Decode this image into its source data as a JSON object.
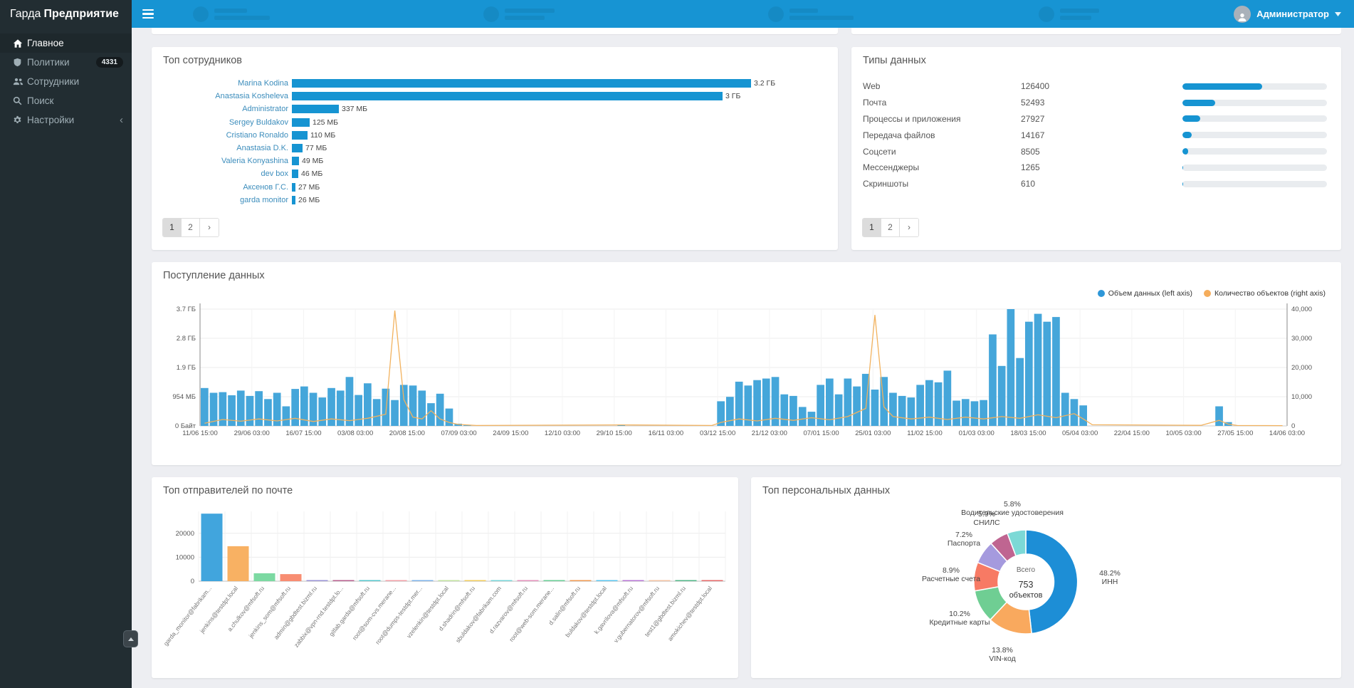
{
  "app": {
    "brand_light": "Гарда",
    "brand_bold": "Предприятие"
  },
  "header": {
    "user": "Администратор"
  },
  "sidebar": {
    "items": [
      {
        "label": "Главное",
        "icon": "home",
        "active": true
      },
      {
        "label": "Политики",
        "icon": "shield",
        "badge": "4331"
      },
      {
        "label": "Сотрудники",
        "icon": "users"
      },
      {
        "label": "Поиск",
        "icon": "search"
      },
      {
        "label": "Настройки",
        "icon": "gear",
        "chevron": "‹"
      }
    ]
  },
  "panels": {
    "top_employees": {
      "title": "Топ сотрудников",
      "pagination": [
        "1",
        "2",
        "›"
      ],
      "active_page": "1"
    },
    "data_types": {
      "title": "Типы данных",
      "pagination": [
        "1",
        "2",
        "›"
      ],
      "active_page": "1"
    },
    "data_flow": {
      "title": "Поступление данных",
      "legend": [
        {
          "label": "Объем данных (left axis)",
          "color": "#2e97d8"
        },
        {
          "label": "Количество объектов (right axis)",
          "color": "#f5ad5c"
        }
      ]
    },
    "top_senders": {
      "title": "Топ отправителей по почте"
    },
    "personal_data": {
      "title": "Топ персональных данных"
    }
  },
  "chart_data": [
    {
      "id": "top_employees",
      "type": "bar",
      "orientation": "horizontal",
      "categories": [
        "Marina Kodina",
        "Anastasia Kosheleva",
        "Administrator",
        "Sergey Buldakov",
        "Cristiano Ronaldo",
        "Anastasia D.K.",
        "Valeria Konyashina",
        "dev box",
        "Аксенов Г.С.",
        "garda monitor"
      ],
      "values_mb": [
        3277,
        3072,
        337,
        125,
        110,
        77,
        49,
        46,
        27,
        26
      ],
      "value_labels": [
        "3.2 ГБ",
        "3 ГБ",
        "337 МБ",
        "125 МБ",
        "110 МБ",
        "77 МБ",
        "49 МБ",
        "46 МБ",
        "27 МБ",
        "26 МБ"
      ],
      "bar_color": "#1694d2",
      "max_mb": 3277
    },
    {
      "id": "data_types",
      "type": "table",
      "categories": [
        "Web",
        "Почта",
        "Процессы и приложения",
        "Передача файлов",
        "Соцсети",
        "Мессенджеры",
        "Скриншоты"
      ],
      "values": [
        126400,
        52493,
        27927,
        14167,
        8505,
        1265,
        610
      ],
      "bar_scale": 230000,
      "bar_color": "#1694d2"
    },
    {
      "id": "data_flow",
      "type": "bar+line",
      "title": "Поступление данных",
      "x_ticks": [
        "11/06 15:00",
        "29/06 03:00",
        "16/07 15:00",
        "03/08 03:00",
        "20/08 15:00",
        "07/09 03:00",
        "24/09 15:00",
        "12/10 03:00",
        "29/10 15:00",
        "16/11 03:00",
        "03/12 15:00",
        "21/12 03:00",
        "07/01 15:00",
        "25/01 03:00",
        "11/02 15:00",
        "01/03 03:00",
        "18/03 15:00",
        "05/04 03:00",
        "22/04 15:00",
        "10/05 03:00",
        "27/05 15:00",
        "14/06 03:00"
      ],
      "y_left_ticks": [
        "3.7 ГБ",
        "2.8 ГБ",
        "1.9 ГБ",
        "954 МБ",
        "0 Байт"
      ],
      "y_left_max_gb": 3.7,
      "y_right_ticks": [
        "40,000",
        "30,000",
        "20,000",
        "10,000",
        "0"
      ],
      "y_right_max": 40000,
      "bars_gb": [
        1.2,
        1.05,
        1.07,
        0.97,
        1.12,
        0.95,
        1.1,
        0.85,
        1.05,
        0.62,
        1.17,
        1.25,
        1.05,
        0.9,
        1.2,
        1.12,
        1.55,
        0.98,
        1.35,
        0.85,
        1.18,
        0.82,
        1.3,
        1.28,
        1.12,
        0.72,
        1.02,
        0.55,
        0.07,
        0.02,
        0,
        0,
        0,
        0,
        0,
        0,
        0,
        0,
        0,
        0,
        0,
        0,
        0,
        0,
        0,
        0,
        0.04,
        0,
        0,
        0,
        0,
        0,
        0,
        0,
        0,
        0,
        0,
        0.78,
        0.92,
        1.4,
        1.28,
        1.45,
        1.5,
        1.55,
        1.0,
        0.95,
        0.6,
        0.45,
        1.3,
        1.5,
        1.0,
        1.5,
        1.25,
        1.65,
        1.15,
        1.55,
        1.05,
        0.95,
        0.9,
        1.3,
        1.45,
        1.38,
        1.75,
        0.8,
        0.85,
        0.78,
        0.82,
        2.9,
        1.9,
        3.7,
        2.15,
        3.3,
        3.55,
        3.3,
        3.45,
        1.05,
        0.85,
        0.65,
        0,
        0,
        0,
        0,
        0,
        0,
        0,
        0,
        0,
        0,
        0,
        0,
        0,
        0,
        0.62,
        0.12,
        0,
        0,
        0,
        0,
        0,
        0
      ],
      "line_points": [
        [
          0,
          900
        ],
        [
          2,
          2200
        ],
        [
          4,
          1600
        ],
        [
          6,
          2400
        ],
        [
          8,
          1700
        ],
        [
          10,
          2600
        ],
        [
          12,
          1500
        ],
        [
          14,
          2400
        ],
        [
          16,
          1800
        ],
        [
          18,
          2600
        ],
        [
          20,
          4000
        ],
        [
          21,
          39500
        ],
        [
          22,
          9000
        ],
        [
          23,
          3000
        ],
        [
          24,
          2400
        ],
        [
          25,
          5200
        ],
        [
          26,
          2400
        ],
        [
          27,
          1200
        ],
        [
          28,
          500
        ],
        [
          30,
          150
        ],
        [
          46,
          350
        ],
        [
          56,
          150
        ],
        [
          57,
          1200
        ],
        [
          59,
          2400
        ],
        [
          61,
          1700
        ],
        [
          63,
          2600
        ],
        [
          65,
          1900
        ],
        [
          67,
          2800
        ],
        [
          69,
          2100
        ],
        [
          71,
          3200
        ],
        [
          73,
          6000
        ],
        [
          74,
          38000
        ],
        [
          75,
          6500
        ],
        [
          76,
          3200
        ],
        [
          78,
          2400
        ],
        [
          80,
          3000
        ],
        [
          82,
          2200
        ],
        [
          84,
          3000
        ],
        [
          86,
          2400
        ],
        [
          88,
          3200
        ],
        [
          90,
          2600
        ],
        [
          92,
          3800
        ],
        [
          94,
          2800
        ],
        [
          96,
          4200
        ],
        [
          97,
          2400
        ],
        [
          98,
          400
        ],
        [
          110,
          200
        ],
        [
          112,
          1900
        ],
        [
          113,
          600
        ],
        [
          114,
          150
        ],
        [
          119,
          100
        ]
      ],
      "bar_color": "#45a6da",
      "line_color": "#f2b25e"
    },
    {
      "id": "top_senders",
      "type": "bar",
      "categories": [
        "garda_monitor@fabrikam...",
        "jenkins@testdpt.local",
        "a.chulkov@mfsoft.ru",
        "jenkins_som@mfsoft.ru",
        "admin@gbdtest.bizml.ru",
        "zabbix@vpn-rnd.testdpt.lo...",
        "gitlab.garda@mfsoft.ru",
        "root@som-cvs.merane...",
        "root@dumps-testdpt.mer...",
        "vzelenkin@testdpt.local",
        "d.shadrin@mfsoft.ru",
        "sbuldakov@fabrikam.com",
        "d.razvarov@mfsoft.ru",
        "root@web-som.merane...",
        "d.salin@mfsoft.ru",
        "buldakov@testdpt.local",
        "k.gavrilova@mfsoft.ru",
        "v.gubernatorov@mfsoft.ru",
        "test1@gbdtest.bizml.ru",
        "amokichev@testdpt.local"
      ],
      "values": [
        28200,
        14600,
        3300,
        2950,
        380,
        300,
        260,
        230,
        200,
        180,
        165,
        150,
        140,
        130,
        120,
        110,
        100,
        95,
        90,
        85
      ],
      "y_ticks": [
        0,
        10000,
        20000
      ],
      "colors": [
        "#41a5dd",
        "#f8b163",
        "#7cd9a2",
        "#f88d72",
        "#9a93d6",
        "#b8608f",
        "#56c7cc",
        "#f1a1a8",
        "#7fb3e8",
        "#c3e3a0",
        "#f2cd5e",
        "#79d6d8",
        "#e492bb",
        "#68ce96",
        "#f09b54",
        "#5bc6ef",
        "#b877d6",
        "#f3c3a3",
        "#52b788",
        "#e66a6a"
      ]
    },
    {
      "id": "personal_data",
      "type": "pie",
      "labels": [
        "ИНН",
        "VIN-код",
        "Кредитные карты",
        "Расчетные счета",
        "Паспорта",
        "СНИЛС",
        "Водительские удостоверения"
      ],
      "percents": [
        48.2,
        13.8,
        10.2,
        8.9,
        7.2,
        5.9,
        5.8
      ],
      "percent_labels": [
        "48.2%",
        "13.8%",
        "10.2%",
        "8.9%",
        "7.2%",
        "5.9%",
        "5.8%"
      ],
      "colors": [
        "#1d8ed6",
        "#f9a95e",
        "#6fce93",
        "#f77a64",
        "#a59ade",
        "#bf6591",
        "#7cd9d6"
      ],
      "center_label": {
        "line1": "Всего",
        "line2": "753",
        "line3": "объектов"
      }
    }
  ]
}
